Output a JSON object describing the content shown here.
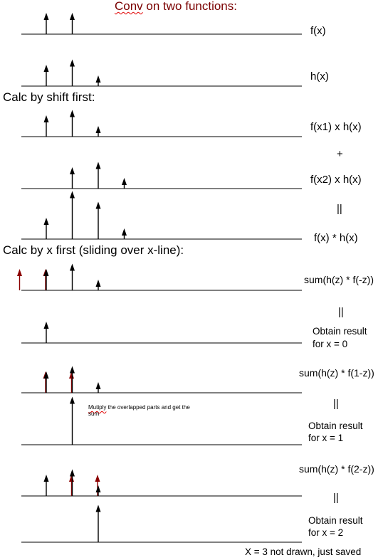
{
  "texts": {
    "title_word": "Conv",
    "title_rest": " on two functions:",
    "f_label": "f(x)",
    "h_label": "h(x)",
    "shift_heading": "Calc by shift first:",
    "fx1_label": "f(x1) x h(x)",
    "plus": "+",
    "fx2_label": "f(x2) x h(x)",
    "equals1": "||",
    "conv_label": "f(x) * h(x)",
    "x_heading": "Calc by x first (sliding over x-line):",
    "sum0": "sum(h(z) * f(-z))",
    "equals2": "||",
    "result0_l1": "Obtain result",
    "result0_l2": "for x = 0",
    "sum1": "sum(h(z) * f(1-z))",
    "equals3": "||",
    "note_word": "Mutiply",
    "note_rest": " the overlapped parts and get the sum",
    "result1_l1": "Obtain result",
    "result1_l2": "for x = 1",
    "sum2": "sum(h(z) * f(2-z))",
    "equals4": "||",
    "result2_l1": "Obtain result",
    "result2_l2": "for x = 2",
    "footer": "X = 3 not drawn, just saved"
  },
  "colors": {
    "axis": "#000000",
    "arrow": "#000000",
    "flipped": "#8b0000",
    "title": "#7a0000"
  },
  "rows": [
    {
      "id": "f",
      "arrows": [
        {
          "x": 0,
          "h": 1
        },
        {
          "x": 1,
          "h": 1
        }
      ]
    },
    {
      "id": "h",
      "arrows": [
        {
          "x": 0,
          "h": 1
        },
        {
          "x": 1,
          "h": 1.25
        },
        {
          "x": 2,
          "h": 0.5
        }
      ]
    },
    {
      "id": "f-x1-h",
      "arrows": [
        {
          "x": 0,
          "h": 1
        },
        {
          "x": 1,
          "h": 1.25
        },
        {
          "x": 2,
          "h": 0.5
        }
      ]
    },
    {
      "id": "f-x2-h",
      "arrows": [
        {
          "x": 1,
          "h": 1
        },
        {
          "x": 2,
          "h": 1.25
        },
        {
          "x": 3,
          "h": 0.5
        }
      ]
    },
    {
      "id": "conv",
      "arrows": [
        {
          "x": 0,
          "h": 1
        },
        {
          "x": 1,
          "h": 2.25
        },
        {
          "x": 2,
          "h": 1.75
        },
        {
          "x": 3,
          "h": 0.5
        }
      ]
    },
    {
      "id": "slide-0",
      "arrows": [
        {
          "x": -1,
          "h": 1,
          "flipped": true
        },
        {
          "x": 0,
          "h": 1,
          "flipped": true
        },
        {
          "x": 0,
          "h": 1
        },
        {
          "x": 1,
          "h": 1.25
        },
        {
          "x": 2,
          "h": 0.5
        }
      ]
    },
    {
      "id": "result-0",
      "arrows": [
        {
          "x": 0,
          "h": 1
        }
      ]
    },
    {
      "id": "slide-1",
      "arrows": [
        {
          "x": 0,
          "h": 1,
          "flipped": true
        },
        {
          "x": 1,
          "h": 1,
          "flipped": true
        },
        {
          "x": 0,
          "h": 1
        },
        {
          "x": 1,
          "h": 1.25
        },
        {
          "x": 2,
          "h": 0.5
        }
      ]
    },
    {
      "id": "result-1",
      "arrows": [
        {
          "x": 1,
          "h": 2.25
        }
      ]
    },
    {
      "id": "slide-2",
      "arrows": [
        {
          "x": 1,
          "h": 1,
          "flipped": true
        },
        {
          "x": 2,
          "h": 1,
          "flipped": true
        },
        {
          "x": 0,
          "h": 1
        },
        {
          "x": 1,
          "h": 1.25
        },
        {
          "x": 2,
          "h": 0.5
        }
      ]
    },
    {
      "id": "result-2",
      "arrows": [
        {
          "x": 2,
          "h": 1.75
        }
      ]
    }
  ]
}
